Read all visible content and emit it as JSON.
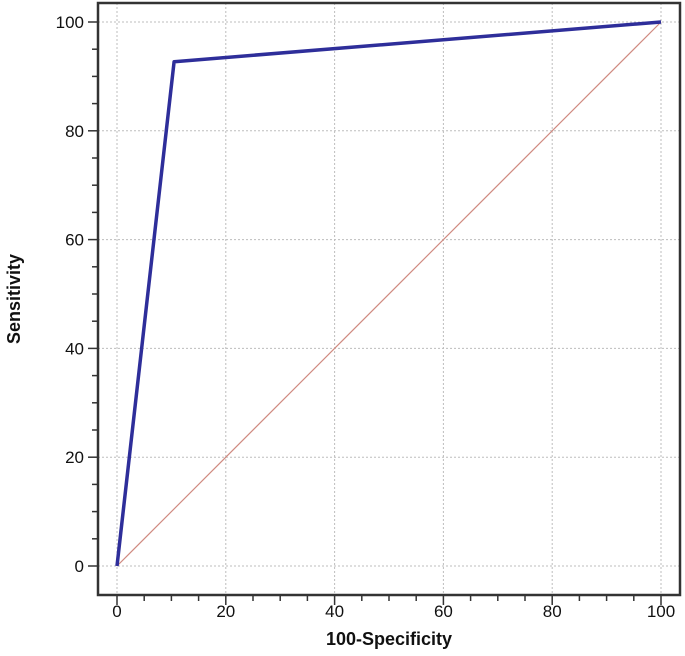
{
  "chart_data": {
    "type": "line",
    "xlabel": "100-Specificity",
    "ylabel": "Sensitivity",
    "xlim": [
      0,
      100
    ],
    "ylim": [
      0,
      100
    ],
    "xticks": [
      0,
      20,
      40,
      60,
      80,
      100
    ],
    "yticks": [
      0,
      20,
      40,
      60,
      80,
      100
    ],
    "minor_tick_step": 5,
    "grid": true,
    "series": [
      {
        "role": "roc-curve",
        "color": "#2e2e9a",
        "points": [
          [
            0,
            0
          ],
          [
            10.5,
            92.7
          ],
          [
            100,
            100
          ]
        ]
      },
      {
        "role": "reference-diagonal",
        "color": "#d08a80",
        "points": [
          [
            0,
            0
          ],
          [
            100,
            100
          ]
        ]
      }
    ]
  }
}
